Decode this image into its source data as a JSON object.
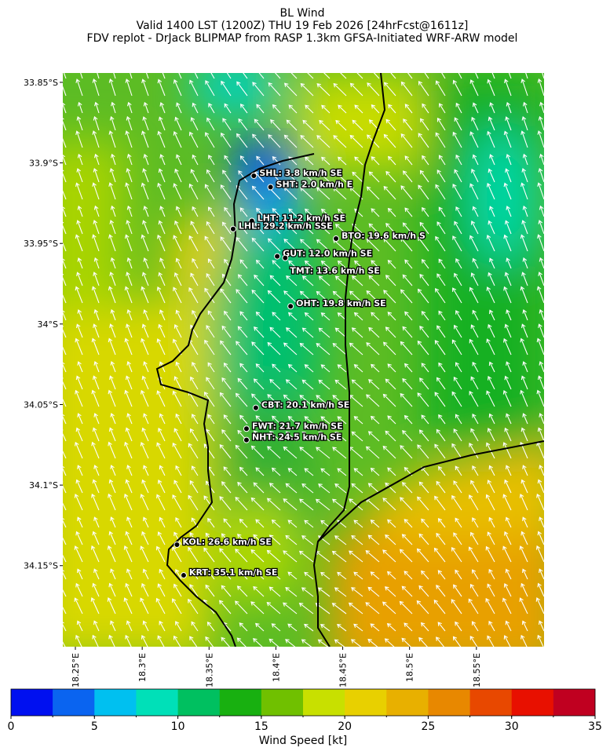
{
  "title": [
    "BL Wind",
    "Valid 1400 LST (1200Z) THU 19 Feb 2026 [24hrFcst@1611z]",
    "FDV replot - DrJack BLIPMAP from RASP 1.3km GFSA-Initiated WRF-ARW model"
  ],
  "map": {
    "lonlim": [
      18.2406,
      18.6006
    ],
    "latlim": [
      -33.8442,
      -34.2003
    ],
    "lonticks": [
      {
        "value": 18.25,
        "label": "18.25°E"
      },
      {
        "value": 18.3,
        "label": "18.3°E"
      },
      {
        "value": 18.35,
        "label": "18.35°E"
      },
      {
        "value": 18.4,
        "label": "18.4°E"
      },
      {
        "value": 18.45,
        "label": "18.45°E"
      },
      {
        "value": 18.5,
        "label": "18.5°E"
      },
      {
        "value": 18.55,
        "label": "18.55°E"
      }
    ],
    "latticks": [
      {
        "value": -33.85,
        "label": "33.85°S"
      },
      {
        "value": -33.9,
        "label": "33.9°S"
      },
      {
        "value": -33.95,
        "label": "33.95°S"
      },
      {
        "value": -34.0,
        "label": "34°S"
      },
      {
        "value": -34.05,
        "label": "34.05°S"
      },
      {
        "value": -34.1,
        "label": "34.1°S"
      },
      {
        "value": -34.15,
        "label": "34.15°S"
      }
    ],
    "stations": [
      {
        "label": "SHL: 3.8 km/h SE",
        "lon": 18.3835,
        "lat": -33.908
      },
      {
        "label": "SHT: 2.0 km/h E",
        "lon": 18.396,
        "lat": -33.915
      },
      {
        "label": "LHT: 11.2 km/h SE",
        "lon": 18.382,
        "lat": -33.936
      },
      {
        "label": "LHL: 29.2 km/h SSE",
        "lon": 18.368,
        "lat": -33.941
      },
      {
        "label": "BTO: 19.6 km/h S",
        "lon": 18.445,
        "lat": -33.947
      },
      {
        "label": "GUT: 12.0 km/h SE",
        "lon": 18.401,
        "lat": -33.958
      },
      {
        "label": "TMT: 13.6 km/h SE",
        "lon": 18.407,
        "lat": -33.959
      },
      {
        "label": "OHT: 19.8 km/h SE",
        "lon": 18.411,
        "lat": -33.989
      },
      {
        "label": "CBT: 20.1 km/h SE",
        "lon": 18.385,
        "lat": -34.052
      },
      {
        "label": "FWT: 21.7 km/h SE",
        "lon": 18.378,
        "lat": -34.065
      },
      {
        "label": "NHT: 24.5 km/h SE",
        "lon": 18.378,
        "lat": -34.072
      },
      {
        "label": "KOL: 26.6 km/h SE",
        "lon": 18.326,
        "lat": -34.137
      },
      {
        "label": "KRT: 35.1 km/h SE",
        "lon": 18.331,
        "lat": -34.156
      }
    ]
  },
  "colorbar": {
    "label": "Wind Speed [kt]",
    "bounds": [
      0,
      2.5,
      5,
      7.5,
      10,
      12.5,
      15,
      17.5,
      20,
      22.5,
      25,
      27.5,
      30,
      32.5,
      35
    ],
    "colors": [
      "#0010f0",
      "#0a64f0",
      "#00c0f0",
      "#00e0b8",
      "#00c060",
      "#18b010",
      "#70c000",
      "#c8e000",
      "#e8d000",
      "#e8b000",
      "#e88800",
      "#e84800",
      "#e81000",
      "#c00020"
    ],
    "ticks": [
      0,
      5,
      10,
      15,
      20,
      25,
      30,
      35
    ]
  }
}
